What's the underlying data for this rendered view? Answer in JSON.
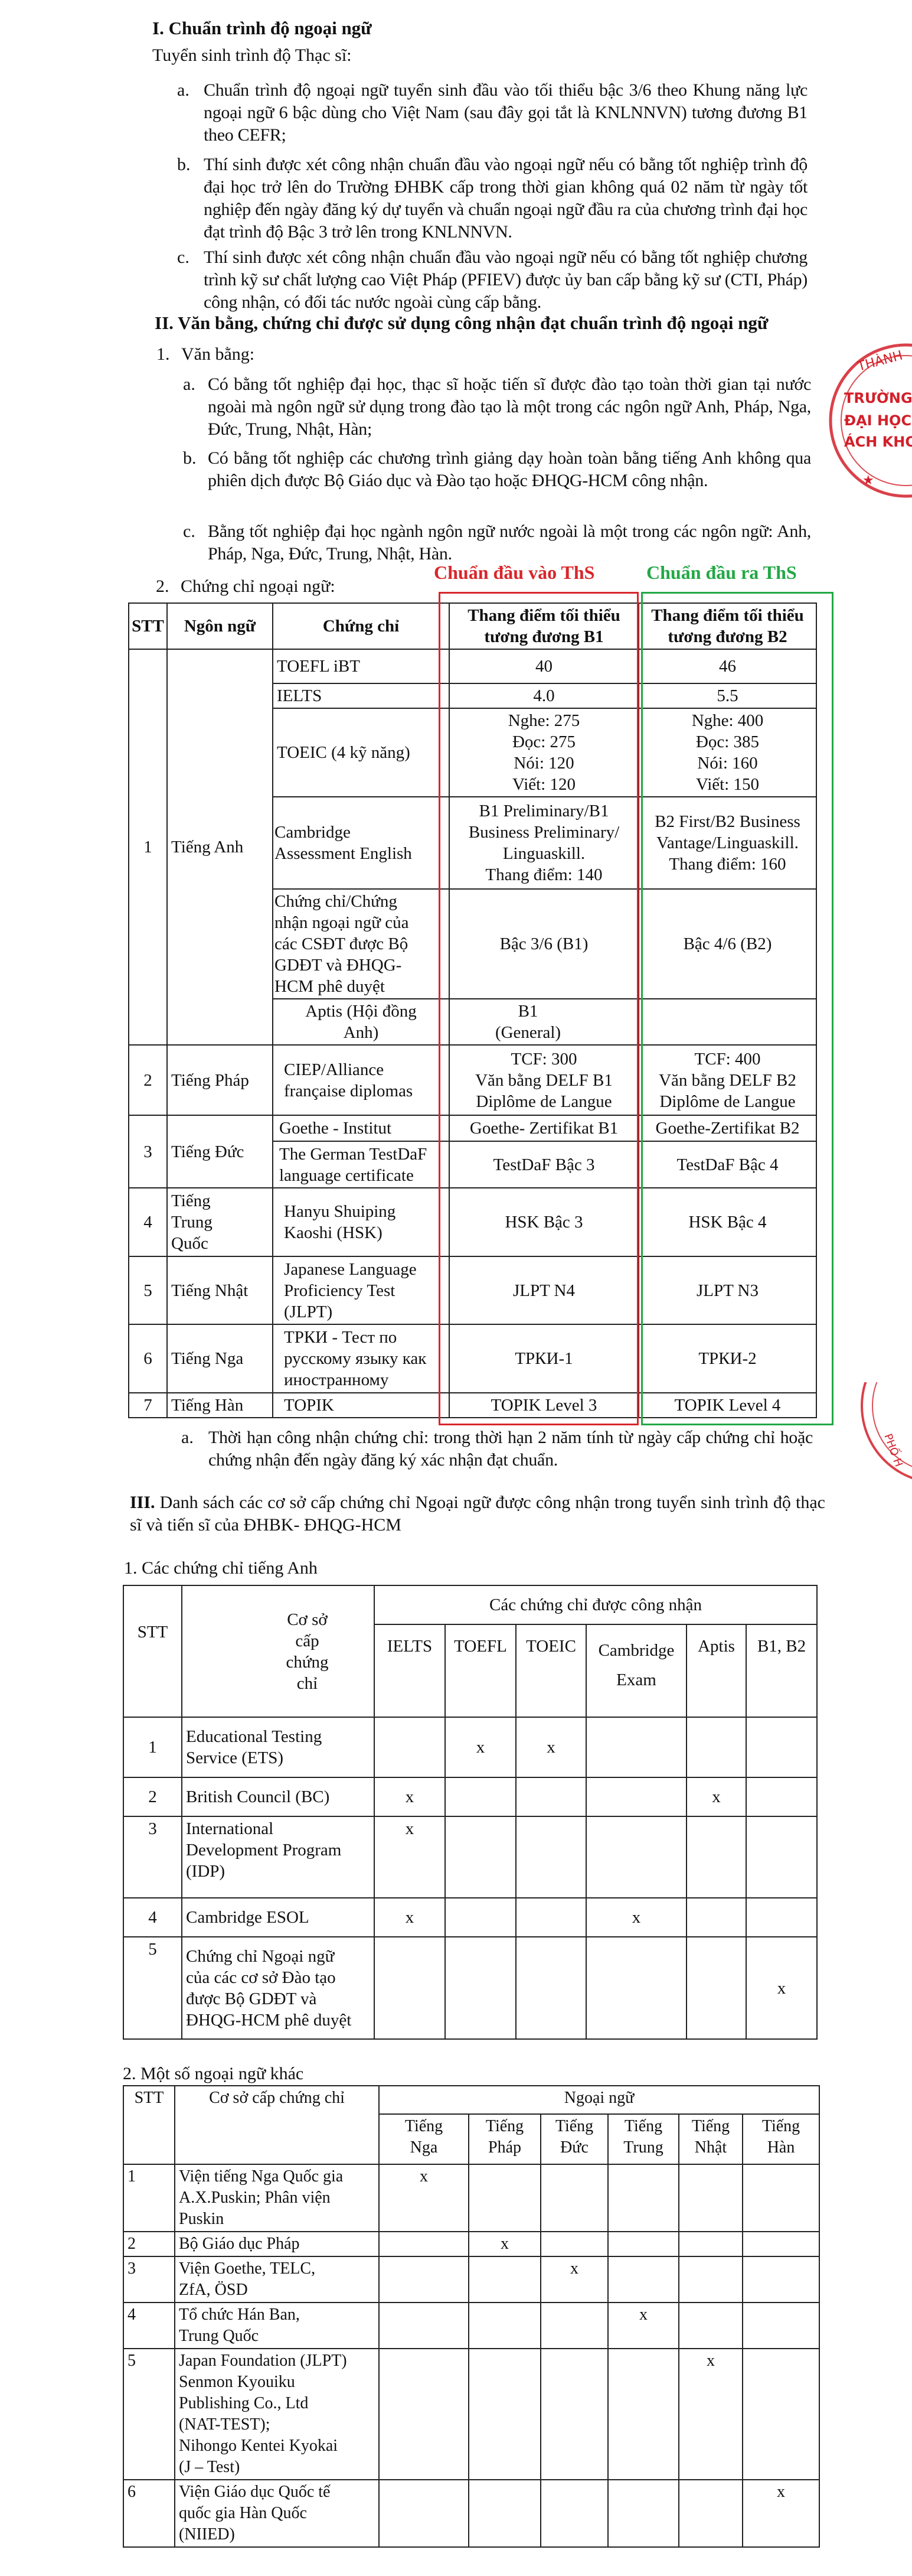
{
  "section1": {
    "heading": "I. Chuẩn trình độ ngoại ngữ",
    "intro": "Tuyển sinh trình độ Thạc sĩ:",
    "items": [
      {
        "label": "a.",
        "text": "Chuẩn trình độ ngoại ngữ tuyển sinh đầu vào tối thiểu bậc 3/6 theo Khung năng lực ngoại ngữ 6 bậc dùng cho Việt Nam (sau đây gọi tắt là KNLNNVN) tương đương B1 theo CEFR;"
      },
      {
        "label": "b.",
        "text": "Thí sinh được xét công nhận chuẩn đầu vào ngoại ngữ nếu có bằng tốt nghiệp trình độ đại học trở lên do Trường ĐHBK cấp trong thời gian không quá 02 năm từ ngày tốt nghiệp đến ngày đăng ký dự tuyển và chuẩn ngoại ngữ đầu ra của chương trình đại học đạt trình độ Bậc 3 trở lên trong KNLNNVN."
      },
      {
        "label": "c.",
        "text": "Thí sinh được xét công nhận chuẩn đầu vào ngoại ngữ nếu có bằng tốt nghiệp chương trình kỹ sư chất lượng cao Việt Pháp (PFIEV) được ủy ban cấp bằng kỹ sư (CTI, Pháp) công nhận, có đối tác nước ngoài cùng cấp bằng."
      }
    ]
  },
  "section2": {
    "heading": "II. Văn bằng, chứng chỉ được sử dụng công nhận đạt chuẩn trình độ ngoại ngữ",
    "sub1": {
      "label": "1.",
      "title": "Văn bằng:"
    },
    "sub1_items": [
      {
        "label": "a.",
        "text": "Có bằng tốt nghiệp đại học, thạc sĩ hoặc tiến sĩ được đào tạo toàn thời gian tại nước ngoài mà ngôn ngữ sử dụng trong đào tạo là một trong các ngôn ngữ Anh, Pháp, Nga, Đức, Trung, Nhật, Hàn;"
      },
      {
        "label": "b.",
        "text": "Có bằng tốt nghiệp các chương trình giảng dạy hoàn toàn bằng tiếng Anh không qua phiên dịch được Bộ Giáo dục và Đào tạo hoặc ĐHQG-HCM công nhận."
      },
      {
        "label": "c.",
        "text": "Bằng tốt nghiệp đại học ngành ngôn ngữ nước ngoài là một trong các ngôn ngữ: Anh, Pháp, Nga, Đức, Trung, Nhật, Hàn."
      }
    ],
    "sub2": {
      "label": "2.",
      "title": "Chứng chỉ ngoại ngữ:"
    },
    "annotations": {
      "entry": "Chuẩn đầu vào ThS",
      "entry_color": "#d9262b",
      "exit": "Chuẩn đầu ra ThS",
      "exit_color": "#22a845"
    },
    "table": {
      "headers": [
        "STT",
        "Ngôn ngữ",
        "Chứng chỉ",
        "Thang điểm tối thiểu\ntương đương B1",
        "Thang điểm tối thiểu\ntương đương B2"
      ],
      "groups": [
        {
          "stt": "1",
          "lang": "Tiếng Anh",
          "certs": [
            {
              "name": "TOEFL iBT",
              "b1": "40",
              "b2": "46"
            },
            {
              "name": "IELTS",
              "b1": "4.0",
              "b2": "5.5"
            },
            {
              "name": "TOEIC (4 kỹ năng)",
              "b1": "Nghe: 275\nĐọc: 275\nNói: 120\nViết: 120",
              "b2": "Nghe: 400\nĐọc: 385\nNói: 160\nViết: 150"
            },
            {
              "name": "Cambridge\nAssessment English",
              "b1": "B1 Preliminary/B1\nBusiness Preliminary/\nLinguaskill.\nThang điểm: 140",
              "b2": "B2 First/B2 Business\nVantage/Linguaskill.\nThang điểm: 160"
            },
            {
              "name": "Chứng chỉ/Chứng\nnhận ngoại ngữ của\ncác CSĐT được Bộ\nGDĐT và ĐHQG-\nHCM phê duyệt",
              "b1": "Bậc 3/6 (B1)",
              "b2": "Bậc 4/6 (B2)"
            },
            {
              "name": "Aptis (Hội đồng\nAnh)",
              "b1": "B1\n(General)",
              "b2": ""
            }
          ]
        },
        {
          "stt": "2",
          "lang": "Tiếng Pháp",
          "certs": [
            {
              "name": "CIEP/Alliance\nfrançaise diplomas",
              "b1": "TCF: 300\nVăn bằng DELF B1\nDiplôme de Langue",
              "b2": "TCF: 400\nVăn bằng DELF B2\nDiplôme de Langue"
            }
          ]
        },
        {
          "stt": "3",
          "lang": "Tiếng Đức",
          "certs": [
            {
              "name": "Goethe - Institut",
              "b1": "Goethe- Zertifikat B1",
              "b2": "Goethe-Zertifikat B2"
            },
            {
              "name": "The German TestDaF\nlanguage certificate",
              "b1": "TestDaF Bậc 3",
              "b2": "TestDaF Bậc 4"
            }
          ]
        },
        {
          "stt": "4",
          "lang": "Tiếng\nTrung\nQuốc",
          "certs": [
            {
              "name": "Hanyu Shuiping\nKaoshi (HSK)",
              "b1": "HSK Bậc 3",
              "b2": "HSK Bậc 4"
            }
          ]
        },
        {
          "stt": "5",
          "lang": "Tiếng Nhật",
          "certs": [
            {
              "name": "Japanese Language\nProficiency Test\n(JLPT)",
              "b1": "JLPT N4",
              "b2": "JLPT N3"
            }
          ]
        },
        {
          "stt": "6",
          "lang": "Tiếng Nga",
          "certs": [
            {
              "name": "ТРКИ - Тест по\nрусскому языку как\nиностранному",
              "b1": "ТРКИ-1",
              "b2": "ТРКИ-2"
            }
          ]
        },
        {
          "stt": "7",
          "lang": "Tiếng Hàn",
          "certs": [
            {
              "name": "TOPIK",
              "b1": "TOPIK Level 3",
              "b2": "TOPIK Level 4"
            }
          ]
        }
      ]
    },
    "note": {
      "label": "a.",
      "text": "Thời hạn công nhận chứng chỉ: trong thời hạn 2 năm tính từ ngày cấp chứng chỉ hoặc chứng nhận đến ngày đăng ký xác nhận đạt chuẩn."
    }
  },
  "section3": {
    "label": "III.",
    "heading": "Danh sách các cơ sở cấp chứng chỉ Ngoại ngữ được công nhận trong tuyển sinh trình độ thạc sĩ và tiến sĩ của ĐHBK- ĐHQG-HCM",
    "english": {
      "title": "1. Các chứng chỉ tiếng Anh",
      "headers": {
        "stt": "STT",
        "provider": "Cơ sở\ncấp\nchứng\nchỉ",
        "group": "Các chứng chỉ được công nhận",
        "certs": [
          "IELTS",
          "TOEFL",
          "TOEIC",
          "Cambridge\nExam",
          "Aptis",
          "B1, B2"
        ]
      },
      "rows": [
        {
          "stt": "1",
          "provider": "Educational Testing\nService (ETS)",
          "marks": [
            "",
            "x",
            "x",
            "",
            "",
            ""
          ]
        },
        {
          "stt": "2",
          "provider": "British Council (BC)",
          "marks": [
            "x",
            "",
            "",
            "",
            "x",
            ""
          ]
        },
        {
          "stt": "3",
          "provider": "International\nDevelopment Program\n(IDP)",
          "marks": [
            "x",
            "",
            "",
            "",
            "",
            ""
          ]
        },
        {
          "stt": "4",
          "provider": "Cambridge ESOL",
          "marks": [
            "x",
            "",
            "",
            "x",
            "",
            ""
          ]
        },
        {
          "stt": "5",
          "provider": "Chứng chỉ Ngoại ngữ\ncủa các cơ sở Đào tạo\nđược Bộ GDĐT và\nĐHQG-HCM phê duyệt",
          "marks": [
            "",
            "",
            "",
            "",
            "",
            "x"
          ]
        }
      ]
    },
    "others": {
      "title": "2. Một số ngoại ngữ khác",
      "headers": {
        "stt": "STT",
        "provider": "Cơ sở cấp chứng chỉ",
        "group": "Ngoại ngữ",
        "langs": [
          "Tiếng\nNga",
          "Tiếng\nPháp",
          "Tiếng\nĐức",
          "Tiếng\nTrung",
          "Tiếng\nNhật",
          "Tiếng\nHàn"
        ]
      },
      "rows": [
        {
          "stt": "1",
          "provider": "Viện tiếng Nga Quốc gia\nA.X.Puskin; Phân viện\nPuskin",
          "marks": [
            "x",
            "",
            "",
            "",
            "",
            ""
          ]
        },
        {
          "stt": "2",
          "provider": "Bộ Giáo dục Pháp",
          "marks": [
            "",
            "x",
            "",
            "",
            "",
            ""
          ]
        },
        {
          "stt": "3",
          "provider": "Viện Goethe, TELC,\nZfA, ÖSD",
          "marks": [
            "",
            "",
            "x",
            "",
            "",
            ""
          ]
        },
        {
          "stt": "4",
          "provider": "Tổ chức Hán Ban,\nTrung Quốc",
          "marks": [
            "",
            "",
            "",
            "x",
            "",
            ""
          ]
        },
        {
          "stt": "5",
          "provider": "Japan Foundation (JLPT)\nSenmon Kyouiku\nPublishing Co., Ltd\n(NAT-TEST);\nNihongo Kentei Kyokai\n(J – Test)",
          "marks": [
            "",
            "",
            "",
            "",
            "x",
            ""
          ]
        },
        {
          "stt": "6",
          "provider": "Viện Giáo dục Quốc tế\nquốc gia Hàn Quốc\n(NIIED)",
          "marks": [
            "",
            "",
            "",
            "",
            "",
            "x"
          ]
        }
      ]
    }
  },
  "stamp": {
    "color": "#d3202a",
    "fragments": [
      "THÀNH",
      "TRƯỜNG",
      "ĐẠI HỌC",
      "ÁCH KHO",
      "PHỐ H"
    ]
  }
}
